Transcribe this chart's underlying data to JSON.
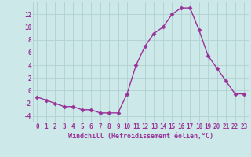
{
  "x": [
    0,
    1,
    2,
    3,
    4,
    5,
    6,
    7,
    8,
    9,
    10,
    11,
    12,
    13,
    14,
    15,
    16,
    17,
    18,
    19,
    20,
    21,
    22,
    23
  ],
  "y": [
    -1,
    -1.5,
    -2,
    -2.5,
    -2.5,
    -3,
    -3,
    -3.5,
    -3.5,
    -3.5,
    -0.5,
    4,
    7,
    9,
    10,
    12,
    13,
    13,
    9.5,
    5.5,
    3.5,
    1.5,
    -0.5,
    -0.5
  ],
  "line_color": "#993399",
  "marker": "D",
  "markersize": 2.5,
  "linewidth": 1.0,
  "xlabel": "Windchill (Refroidissement éolien,°C)",
  "xlabel_fontsize": 6,
  "xlabel_color": "#993399",
  "bg_color": "#cde8e8",
  "grid_color": "#b0d0d0",
  "tick_color": "#993399",
  "tick_labelsize": 5.5,
  "ylim": [
    -5,
    14
  ],
  "yticks": [
    -4,
    -2,
    0,
    2,
    4,
    6,
    8,
    10,
    12
  ],
  "xlim": [
    -0.5,
    23.5
  ],
  "xticks": [
    0,
    1,
    2,
    3,
    4,
    5,
    6,
    7,
    8,
    9,
    10,
    11,
    12,
    13,
    14,
    15,
    16,
    17,
    18,
    19,
    20,
    21,
    22,
    23
  ]
}
